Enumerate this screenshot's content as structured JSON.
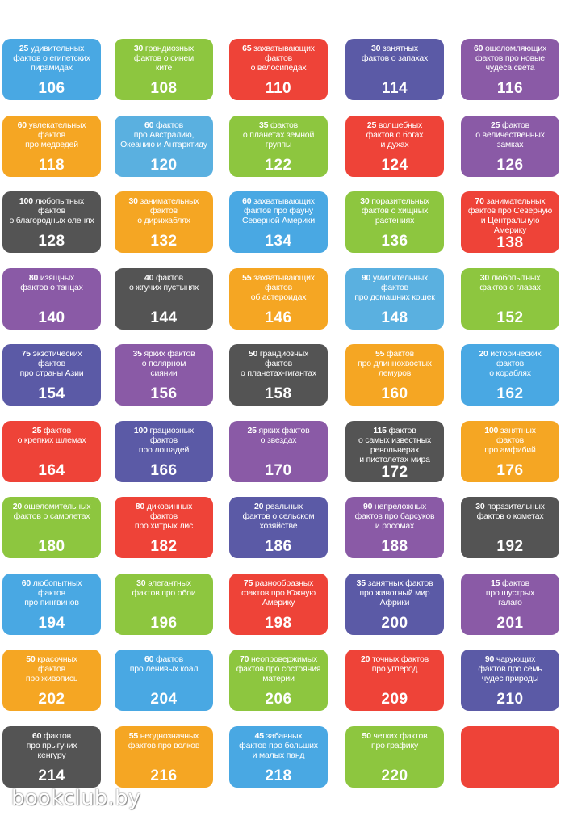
{
  "colors": {
    "blue": "#49a8e3",
    "green": "#8dc63f",
    "red": "#ee4338",
    "purple": "#5b5aa6",
    "violet": "#8a5aa6",
    "orange": "#f5a623",
    "gray": "#545454",
    "light_blue": "#5ab0e0"
  },
  "tiles": [
    {
      "num": "25",
      "text": "удивительных\nфактов о египетских\nпирамидах",
      "page": "106",
      "color": "#49a8e3"
    },
    {
      "num": "30",
      "text": "грандиозных\nфактов о синем\nките",
      "page": "108",
      "color": "#8dc63f"
    },
    {
      "num": "65",
      "text": "захватывающих\nфактов\nо велосипедах",
      "page": "110",
      "color": "#ee4338"
    },
    {
      "num": "30",
      "text": "занятных\nфактов о запахах",
      "page": "114",
      "color": "#5b5aa6"
    },
    {
      "num": "60",
      "text": "ошеломляющих\nфактов про новые\nчудеса света",
      "page": "116",
      "color": "#8a5aa6"
    },
    {
      "num": "60",
      "text": "увлекательных\nфактов\nпро медведей",
      "page": "118",
      "color": "#f5a623"
    },
    {
      "num": "60",
      "text": "фактов\nпро Австралию,\nОкеанию и Антарктиду",
      "page": "120",
      "color": "#5ab0e0"
    },
    {
      "num": "35",
      "text": "фактов\nо планетах земной\nгруппы",
      "page": "122",
      "color": "#8dc63f"
    },
    {
      "num": "25",
      "text": "волшебных\nфактов о богах\nи духах",
      "page": "124",
      "color": "#ee4338"
    },
    {
      "num": "25",
      "text": "фактов\nо величественных\nзамках",
      "page": "126",
      "color": "#8a5aa6"
    },
    {
      "num": "100",
      "text": "любопытных\nфактов\nо благородных оленях",
      "page": "128",
      "color": "#545454"
    },
    {
      "num": "30",
      "text": "занимательных\nфактов\nо дирижаблях",
      "page": "132",
      "color": "#f5a623"
    },
    {
      "num": "60",
      "text": "захватывающих\nфактов про фауну\nСеверной Америки",
      "page": "134",
      "color": "#49a8e3"
    },
    {
      "num": "30",
      "text": "поразительных\nфактов о хищных\nрастениях",
      "page": "136",
      "color": "#8dc63f"
    },
    {
      "num": "70",
      "text": "занимательных\nфактов про Северную\nи Центральную\nАмерику",
      "page": "138",
      "color": "#ee4338"
    },
    {
      "num": "80",
      "text": "изящных\nфактов о танцах",
      "page": "140",
      "color": "#8a5aa6"
    },
    {
      "num": "40",
      "text": "фактов\nо жгучих пустынях",
      "page": "144",
      "color": "#545454"
    },
    {
      "num": "55",
      "text": "захватывающих\nфактов\nоб астероидах",
      "page": "146",
      "color": "#f5a623"
    },
    {
      "num": "90",
      "text": "умилительных\nфактов\nпро домашних кошек",
      "page": "148",
      "color": "#5ab0e0"
    },
    {
      "num": "30",
      "text": "любопытных\nфактов о глазах",
      "page": "152",
      "color": "#8dc63f"
    },
    {
      "num": "75",
      "text": "экзотических\nфактов\nпро страны Азии",
      "page": "154",
      "color": "#5b5aa6"
    },
    {
      "num": "35",
      "text": "ярких фактов\nо полярном\nсиянии",
      "page": "156",
      "color": "#8a5aa6"
    },
    {
      "num": "50",
      "text": "грандиозных\nфактов\nо планетах-гигантах",
      "page": "158",
      "color": "#545454"
    },
    {
      "num": "55",
      "text": "фактов\nпро длиннохвостых\nлемуров",
      "page": "160",
      "color": "#f5a623"
    },
    {
      "num": "20",
      "text": "исторических\nфактов\nо кораблях",
      "page": "162",
      "color": "#49a8e3"
    },
    {
      "num": "25",
      "text": "фактов\nо крепких шлемах",
      "page": "164",
      "color": "#ee4338"
    },
    {
      "num": "100",
      "text": "грациозных\nфактов\nпро лошадей",
      "page": "166",
      "color": "#5b5aa6"
    },
    {
      "num": "25",
      "text": "ярких фактов\nо звездах",
      "page": "170",
      "color": "#8a5aa6"
    },
    {
      "num": "115",
      "text": "фактов\nо самых известных\nревольверах\nи пистолетах мира",
      "page": "172",
      "color": "#545454"
    },
    {
      "num": "100",
      "text": "занятных\nфактов\nпро амфибий",
      "page": "176",
      "color": "#f5a623"
    },
    {
      "num": "20",
      "text": "ошеломительных\nфактов о самолетах",
      "page": "180",
      "color": "#8dc63f"
    },
    {
      "num": "80",
      "text": "диковинных\nфактов\nпро хитрых лис",
      "page": "182",
      "color": "#ee4338"
    },
    {
      "num": "20",
      "text": "реальных\nфактов о сельском\nхозяйстве",
      "page": "186",
      "color": "#5b5aa6"
    },
    {
      "num": "90",
      "text": "непреложных\nфактов про барсуков\nи росомах",
      "page": "188",
      "color": "#8a5aa6"
    },
    {
      "num": "30",
      "text": "поразительных\nфактов о кометах",
      "page": "192",
      "color": "#545454"
    },
    {
      "num": "60",
      "text": "любопытных\nфактов\nпро пингвинов",
      "page": "194",
      "color": "#49a8e3"
    },
    {
      "num": "30",
      "text": "элегантных\nфактов про обои",
      "page": "196",
      "color": "#8dc63f"
    },
    {
      "num": "75",
      "text": "разнообразных\nфактов про Южную\nАмерику",
      "page": "198",
      "color": "#ee4338"
    },
    {
      "num": "35",
      "text": "занятных фактов\nпро животный мир\nАфрики",
      "page": "200",
      "color": "#5b5aa6"
    },
    {
      "num": "15",
      "text": "фактов\nпро шустрых\nгалаго",
      "page": "201",
      "color": "#8a5aa6"
    },
    {
      "num": "50",
      "text": "красочных\nфактов\nпро живопись",
      "page": "202",
      "color": "#f5a623"
    },
    {
      "num": "60",
      "text": "фактов\nпро ленивых коал",
      "page": "204",
      "color": "#49a8e3"
    },
    {
      "num": "70",
      "text": "неопровержимых\nфактов про состояния\nматерии",
      "page": "206",
      "color": "#8dc63f"
    },
    {
      "num": "20",
      "text": "точных фактов\nпро углерод",
      "page": "209",
      "color": "#ee4338"
    },
    {
      "num": "90",
      "text": "чарующих\nфактов про семь\nчудес природы",
      "page": "210",
      "color": "#5b5aa6"
    },
    {
      "num": "60",
      "text": "фактов\nпро прыгучих\nкенгуру",
      "page": "214",
      "color": "#545454"
    },
    {
      "num": "55",
      "text": "неоднозначных\nфактов про волков",
      "page": "216",
      "color": "#f5a623"
    },
    {
      "num": "45",
      "text": "забавных\nфактов про больших\nи малых панд",
      "page": "218",
      "color": "#49a8e3"
    },
    {
      "num": "50",
      "text": "четких фактов\nпро графику",
      "page": "220",
      "color": "#8dc63f"
    },
    {
      "num": "",
      "text": "",
      "page": "",
      "color": "#ee4338"
    }
  ],
  "footer": {
    "watermark": "bookclub.by"
  }
}
